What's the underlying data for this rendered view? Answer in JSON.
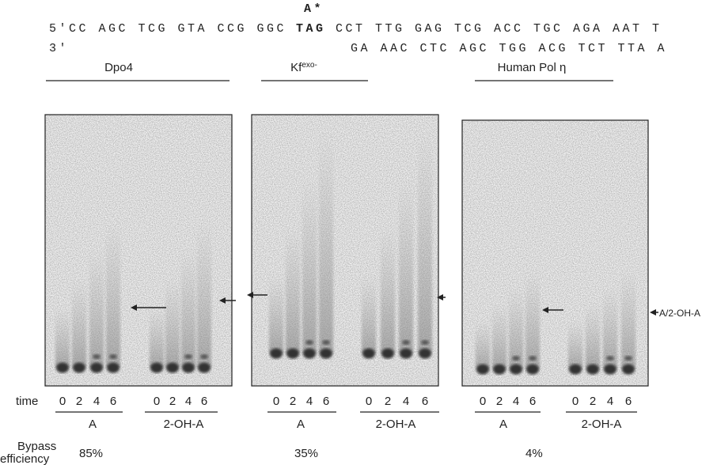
{
  "sequence": {
    "lesion_label": "A*",
    "top_5prime": "5'CC AGC TCG GTA CCG GGC",
    "top_lesion": "TAG",
    "top_3prime": "CCT TTG GAG TCG ACC TGC AGA AAT T",
    "bottom_3prime": "3'",
    "bottom": "GA AAC CTC AGC TGG ACG TCT TTA A"
  },
  "panels": [
    {
      "title": "Dpo4",
      "groups": [
        {
          "times": [
            "0",
            "2",
            "4",
            "6"
          ],
          "label": "A"
        },
        {
          "times": [
            "0",
            "2",
            "4",
            "6"
          ],
          "label": "2-OH-A"
        }
      ],
      "bypass_efficiency": "85%"
    },
    {
      "title": "Kf",
      "title_superscript": "exo-",
      "groups": [
        {
          "times": [
            "0",
            "2",
            "4",
            "6"
          ],
          "label": "A"
        },
        {
          "times": [
            "0",
            "2",
            "4",
            "6"
          ],
          "label": "2-OH-A"
        }
      ],
      "bypass_efficiency": "35%"
    },
    {
      "title": "Human Pol η",
      "groups": [
        {
          "times": [
            "0",
            "2",
            "4",
            "6"
          ],
          "label": "A"
        },
        {
          "times": [
            "0",
            "2",
            "4",
            "6"
          ],
          "label": "2-OH-A"
        }
      ],
      "bypass_efficiency": "4%"
    }
  ],
  "time_label": "time",
  "arrow_label": "A/2-OH-A",
  "bypass_label": [
    "Bypass",
    "efficiency"
  ]
}
